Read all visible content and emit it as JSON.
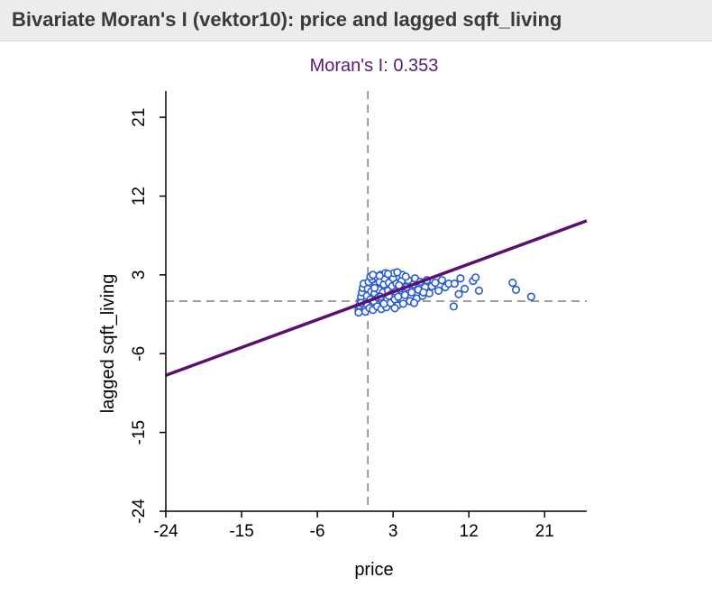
{
  "window": {
    "title": "Bivariate Moran's I (vektor10): price and lagged sqft_living"
  },
  "chart_data": {
    "type": "scatter",
    "title": "Moran's I: 0.353",
    "xlabel": "price",
    "ylabel": "lagged sqft_living",
    "xlim": [
      -24,
      26
    ],
    "ylim": [
      -24,
      24
    ],
    "x_ticks": [
      "-24",
      "-15",
      "-6",
      "3",
      "12",
      "21"
    ],
    "y_ticks": [
      "-24",
      "-15",
      "-6",
      "3",
      "12",
      "21"
    ],
    "grid": false,
    "reference_lines": {
      "x": 0,
      "y": 0
    },
    "regression": {
      "slope": 0.353,
      "intercept": 0
    },
    "colors": {
      "title": "#5b1a73",
      "regression_line": "#5b0f6e",
      "points": "#2a5bd7",
      "reference_lines": "#7f7f7f",
      "axis": "#000000"
    },
    "series": [
      {
        "points": [
          [
            -1.1,
            -1.0
          ],
          [
            -1.0,
            -0.5
          ],
          [
            -0.9,
            0.0
          ],
          [
            -0.8,
            0.5
          ],
          [
            -0.7,
            1.0
          ],
          [
            -0.6,
            1.5
          ],
          [
            -0.5,
            2.0
          ],
          [
            -0.3,
            -1.2
          ],
          [
            -0.2,
            -0.3
          ],
          [
            -0.1,
            0.6
          ],
          [
            0.0,
            1.4
          ],
          [
            0.1,
            2.2
          ],
          [
            0.2,
            -0.8
          ],
          [
            0.3,
            0.2
          ],
          [
            0.4,
            1.1
          ],
          [
            0.5,
            2.5
          ],
          [
            0.6,
            -1.0
          ],
          [
            0.7,
            0.0
          ],
          [
            0.8,
            0.9
          ],
          [
            0.9,
            1.8
          ],
          [
            1.0,
            2.8
          ],
          [
            1.1,
            -0.6
          ],
          [
            1.2,
            0.4
          ],
          [
            1.3,
            1.3
          ],
          [
            1.4,
            2.2
          ],
          [
            1.5,
            3.0
          ],
          [
            1.6,
            -0.9
          ],
          [
            1.7,
            0.1
          ],
          [
            1.8,
            1.0
          ],
          [
            1.9,
            1.9
          ],
          [
            2.0,
            2.6
          ],
          [
            2.1,
            3.2
          ],
          [
            2.2,
            -0.7
          ],
          [
            2.3,
            0.3
          ],
          [
            2.4,
            1.2
          ],
          [
            2.5,
            2.1
          ],
          [
            2.6,
            3.0
          ],
          [
            2.7,
            -0.2
          ],
          [
            2.8,
            0.8
          ],
          [
            2.9,
            1.7
          ],
          [
            3.0,
            2.6
          ],
          [
            3.1,
            3.2
          ],
          [
            3.2,
            0.2
          ],
          [
            3.3,
            1.1
          ],
          [
            3.4,
            2.0
          ],
          [
            3.5,
            -0.5
          ],
          [
            3.6,
            0.5
          ],
          [
            3.8,
            1.4
          ],
          [
            4.0,
            2.3
          ],
          [
            4.1,
            3.0
          ],
          [
            4.2,
            -0.3
          ],
          [
            4.4,
            0.7
          ],
          [
            4.6,
            1.6
          ],
          [
            4.8,
            2.4
          ],
          [
            5.0,
            0.0
          ],
          [
            5.2,
            1.0
          ],
          [
            5.4,
            1.9
          ],
          [
            5.6,
            2.6
          ],
          [
            5.8,
            0.3
          ],
          [
            6.0,
            1.3
          ],
          [
            6.2,
            2.2
          ],
          [
            6.5,
            0.6
          ],
          [
            6.8,
            1.6
          ],
          [
            7.0,
            2.4
          ],
          [
            7.3,
            0.9
          ],
          [
            7.6,
            1.7
          ],
          [
            8.0,
            2.1
          ],
          [
            8.4,
            1.2
          ],
          [
            8.8,
            2.4
          ],
          [
            9.2,
            1.6
          ],
          [
            9.6,
            2.0
          ],
          [
            10.3,
            2.0
          ],
          [
            10.8,
            0.8
          ],
          [
            11.0,
            2.6
          ],
          [
            11.5,
            1.4
          ],
          [
            12.5,
            2.3
          ],
          [
            13.2,
            1.2
          ],
          [
            12.8,
            2.7
          ],
          [
            10.2,
            -0.6
          ],
          [
            1.5,
            0.5
          ],
          [
            0.8,
            1.5
          ],
          [
            2.5,
            0.6
          ],
          [
            3.7,
            1.8
          ],
          [
            0.3,
            2.8
          ],
          [
            4.5,
            2.8
          ],
          [
            5.5,
            -0.2
          ],
          [
            1.9,
            -0.3
          ],
          [
            6.6,
            1.0
          ],
          [
            3.2,
            -0.8
          ],
          [
            17.2,
            2.1
          ],
          [
            17.6,
            1.3
          ],
          [
            19.4,
            0.5
          ],
          [
            -1.1,
            -1.3
          ],
          [
            0.6,
            3.0
          ],
          [
            1.4,
            2.9
          ],
          [
            2.4,
            3.1
          ],
          [
            3.5,
            3.3
          ],
          [
            -0.8,
            -0.2
          ]
        ]
      }
    ]
  }
}
